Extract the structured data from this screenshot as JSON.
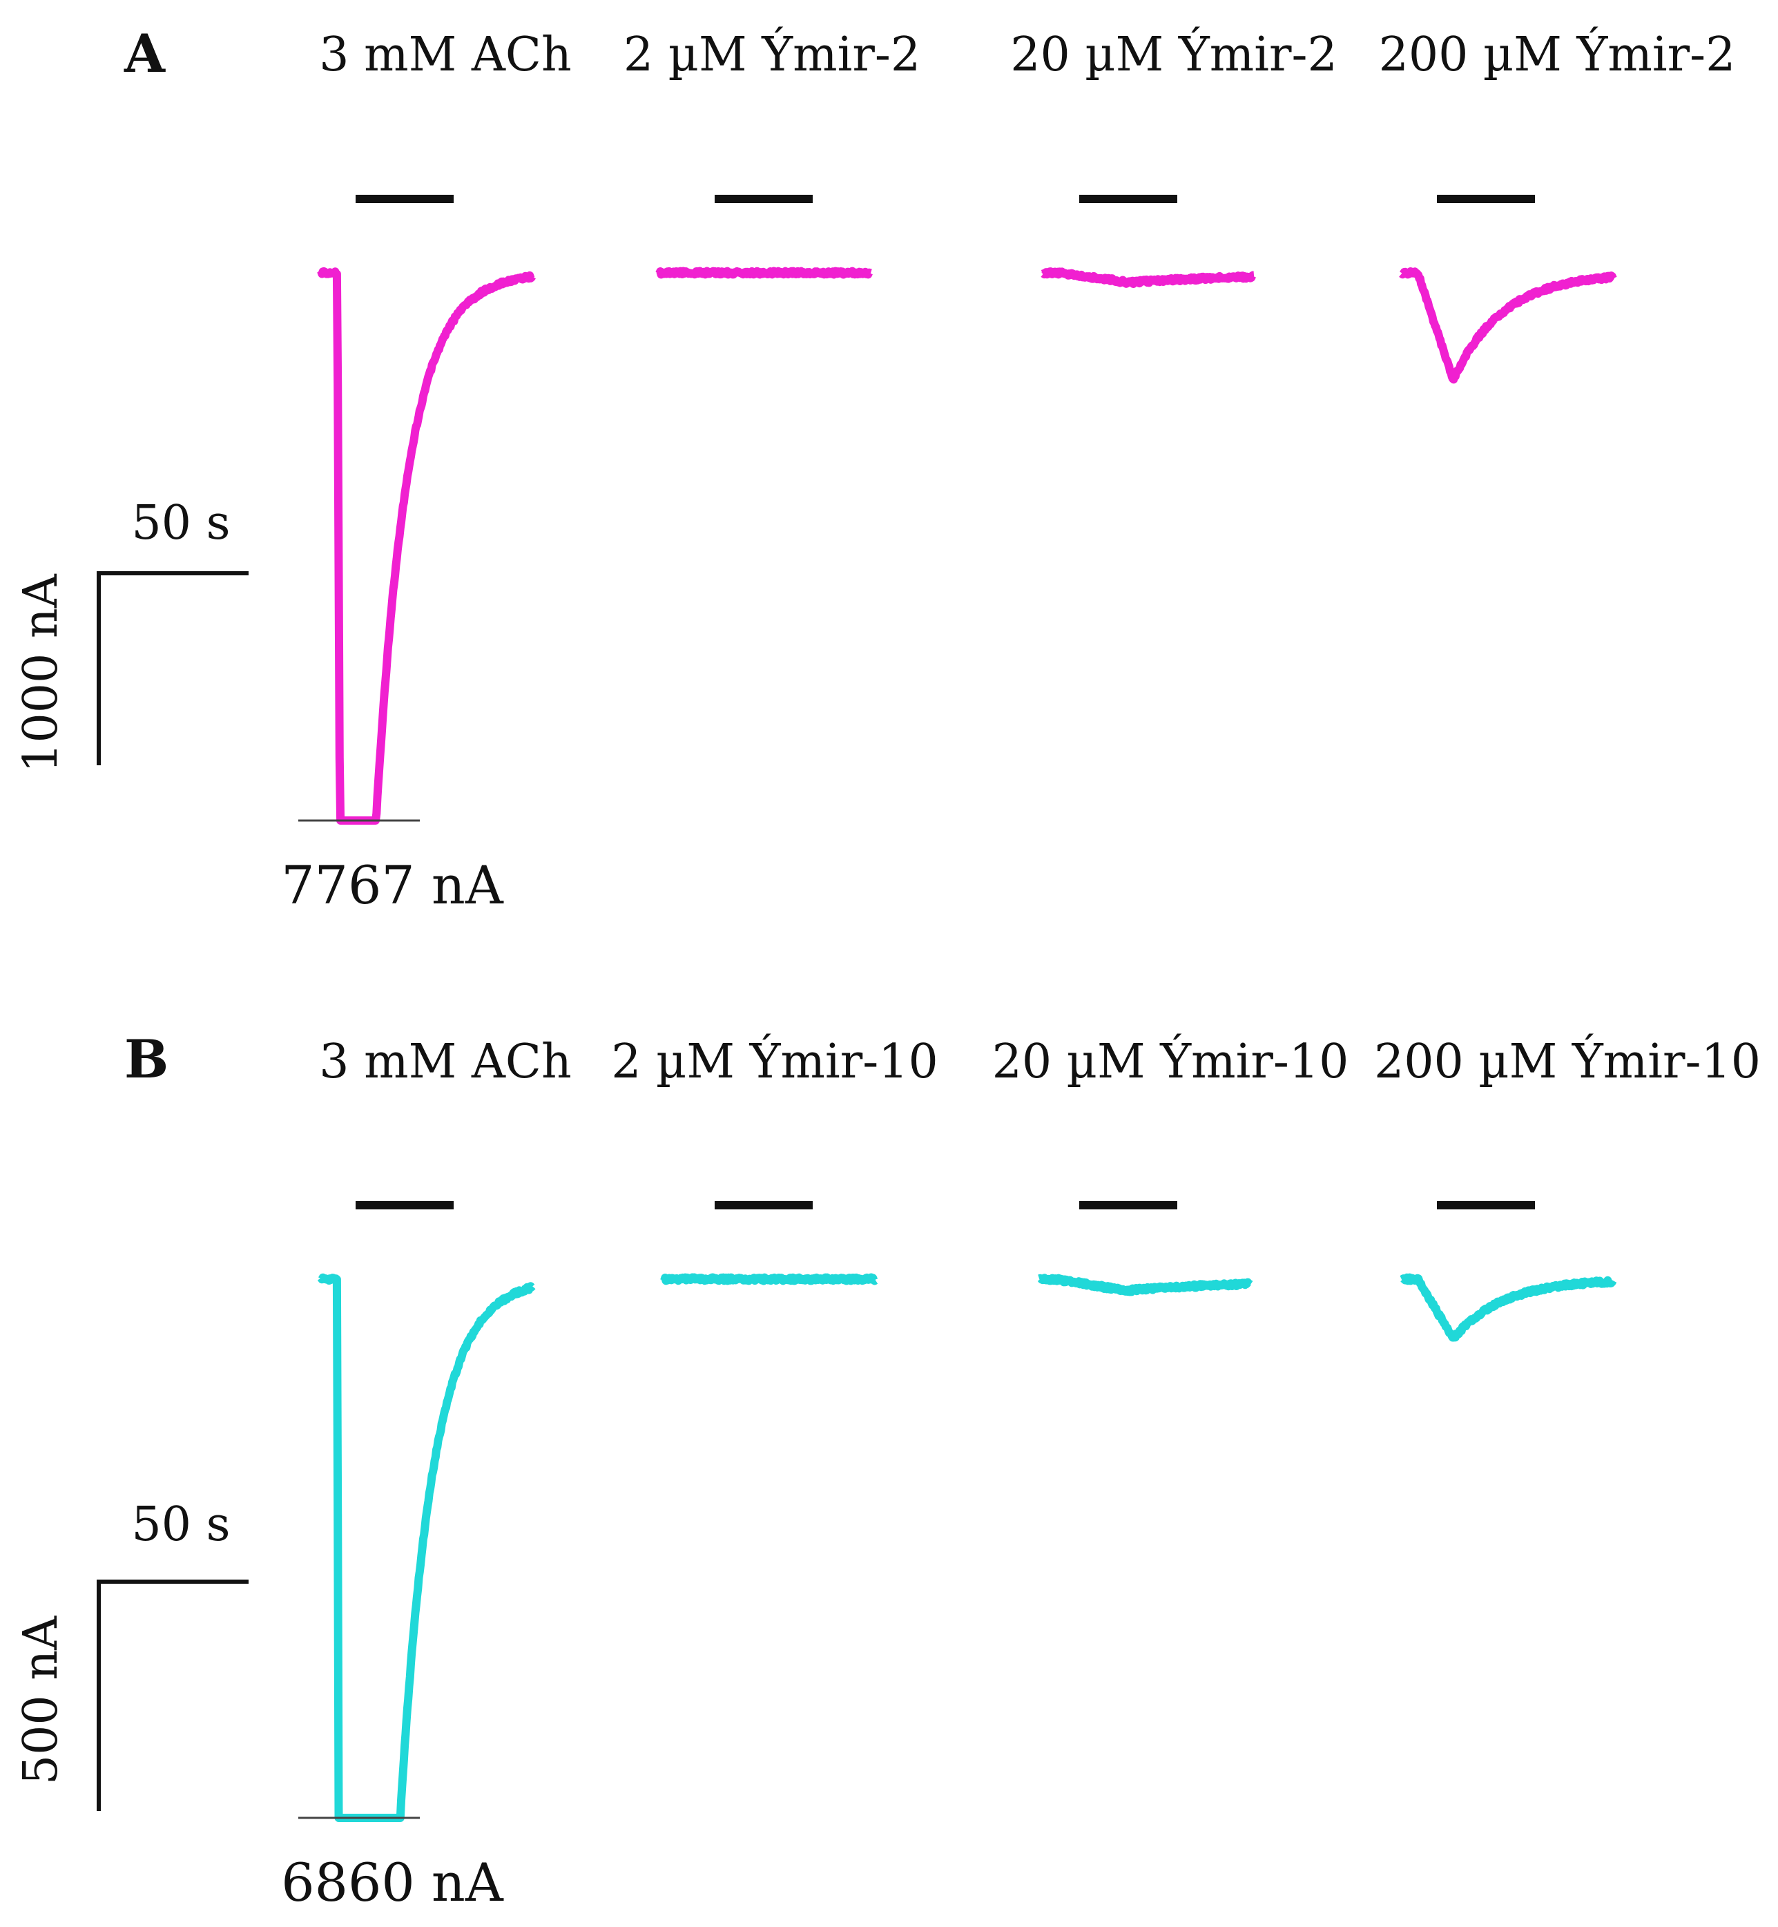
{
  "chart_data": [
    {
      "type": "line",
      "panel_label": "A",
      "color": "#f020d0",
      "conditions": [
        {
          "label": "3 mM ACh",
          "baseline_nA": 0,
          "peak_nA": -7767,
          "peak_time_s": 2,
          "tau_s": 9
        },
        {
          "label": "2 µM Ýmir-2",
          "baseline_nA": 0,
          "peak_nA": 0,
          "peak_time_s": 0,
          "tau_s": 1
        },
        {
          "label": "20 µM Ýmir-2",
          "baseline_nA": 0,
          "peak_nA": -50,
          "peak_time_s": 20,
          "tau_s": 40
        },
        {
          "label": "200 µM Ýmir-2",
          "baseline_nA": 0,
          "peak_nA": -560,
          "peak_time_s": 10,
          "tau_s": 14
        }
      ],
      "application_bar_s": 28,
      "trace_duration_s": 60,
      "scale_bar": {
        "time_label": "50 s",
        "time_s": 50,
        "current_label": "1000 nA",
        "current_nA": 1000
      },
      "peak_annotation": "7767 nA"
    },
    {
      "type": "line",
      "panel_label": "B",
      "color": "#20d8d8",
      "conditions": [
        {
          "label": "3 mM ACh",
          "baseline_nA": 0,
          "peak_nA": -6860,
          "peak_time_s": 2,
          "tau_s": 9
        },
        {
          "label": "2 µM Ýmir-10",
          "baseline_nA": 0,
          "peak_nA": 0,
          "peak_time_s": 0,
          "tau_s": 1
        },
        {
          "label": "20 µM Ýmir-10",
          "baseline_nA": 0,
          "peak_nA": -25,
          "peak_time_s": 20,
          "tau_s": 40
        },
        {
          "label": "200 µM Ýmir-10",
          "baseline_nA": 0,
          "peak_nA": -130,
          "peak_time_s": 10,
          "tau_s": 14
        }
      ],
      "application_bar_s": 28,
      "trace_duration_s": 60,
      "scale_bar": {
        "time_label": "50 s",
        "time_s": 50,
        "current_label": "500 nA",
        "current_nA": 500
      },
      "peak_annotation": "6860 nA"
    }
  ]
}
